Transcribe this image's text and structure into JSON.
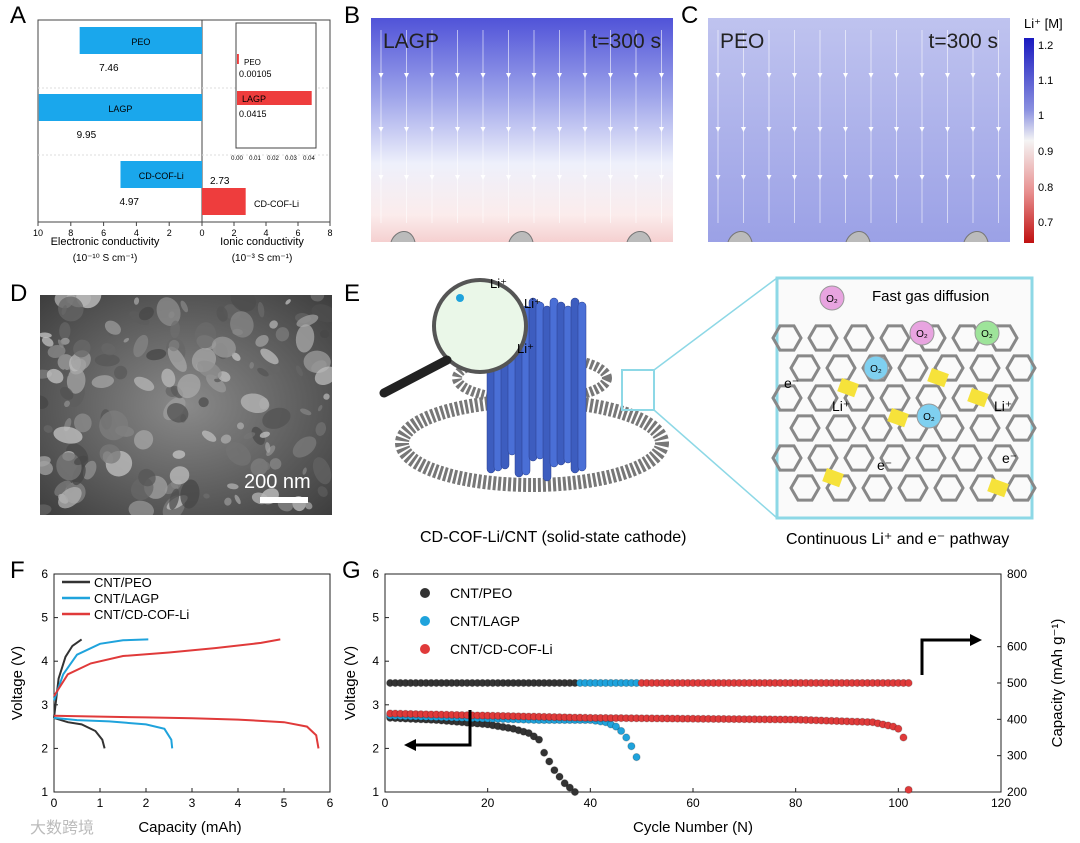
{
  "panels": {
    "A": {
      "label": "A",
      "left_axis_label": "Electronic conductivity",
      "left_axis_units": "(10⁻¹⁰ S cm⁻¹)",
      "right_axis_label": "Ionic conductivity",
      "right_axis_units": "(10⁻³ S cm⁻¹)",
      "left_ticks": [
        "10",
        "8",
        "6",
        "4",
        "2",
        "0"
      ],
      "right_ticks": [
        "2",
        "4",
        "6",
        "8"
      ],
      "inset_ticks": [
        "0.00",
        "0.01",
        "0.02",
        "0.03",
        "0.04"
      ]
    },
    "B": {
      "label": "B",
      "title": "LAGP",
      "time": "t=300 s"
    },
    "C": {
      "label": "C",
      "title": "PEO",
      "time": "t=300 s",
      "colorbar_title": "Li⁺ [M]",
      "colorbar_ticks": [
        "1.2",
        "1.1",
        "1",
        "0.9",
        "0.8",
        "0.7"
      ]
    },
    "D": {
      "label": "D",
      "scale": "200 nm"
    },
    "E": {
      "label": "E",
      "caption_left": "CD-COF-Li/CNT (solid-state cathode)",
      "caption_right": "Continuous Li⁺ and e⁻ pathway",
      "fast_gas": "Fast gas diffusion",
      "li_plus": "Li⁺",
      "e_minus": "e⁻",
      "o2": "O₂"
    },
    "F": {
      "label": "F",
      "xlabel": "Capacity (mAh)",
      "ylabel": "Voltage (V)",
      "xticks": [
        "0",
        "1",
        "2",
        "3",
        "4",
        "5",
        "6"
      ],
      "yticks": [
        "1",
        "2",
        "3",
        "4",
        "5",
        "6"
      ],
      "legend": [
        "CNT/PEO",
        "CNT/LAGP",
        "CNT/CD-COF-Li"
      ]
    },
    "G": {
      "label": "G",
      "xlabel": "Cycle Number (N)",
      "ylabel": "Voltage (V)",
      "y2label": "Capacity (mAh g⁻¹)",
      "xticks": [
        "0",
        "20",
        "40",
        "60",
        "80",
        "100",
        "120"
      ],
      "yticks": [
        "1",
        "2",
        "3",
        "4",
        "5",
        "6"
      ],
      "y2ticks": [
        "200",
        "300",
        "400",
        "500",
        "600",
        "800"
      ],
      "legend": [
        "CNT/PEO",
        "CNT/LAGP",
        "CNT/CD-COF-Li"
      ]
    }
  },
  "watermark": "大数跨境",
  "colors": {
    "peo": "#333333",
    "lagp": "#1fa3dc",
    "cof": "#e03a3a",
    "bar_blue": "#1aa7ec",
    "bar_red": "#ee3d3d"
  },
  "chart_data": [
    {
      "type": "bar",
      "title": "A",
      "orientation": "horizontal",
      "categories": [
        "PEO",
        "LAGP",
        "CD-COF-Li"
      ],
      "series": [
        {
          "name": "Electronic conductivity (10^-10 S cm^-1)",
          "values": [
            7.46,
            9.95,
            4.97
          ]
        },
        {
          "name": "Ionic conductivity (10^-3 S cm^-1)",
          "values": [
            0.00105,
            0.0415,
            2.73
          ]
        }
      ],
      "value_labels": [
        "7.46",
        "9.95",
        "4.97",
        "0.00105",
        "0.0415",
        "2.73"
      ],
      "xlim_left": [
        0,
        10
      ],
      "xlim_right": [
        0,
        8
      ],
      "inset_xlim": [
        0,
        0.04
      ]
    },
    {
      "type": "line",
      "title": "F",
      "xlabel": "Capacity (mAh)",
      "ylabel": "Voltage (V)",
      "xlim": [
        0,
        6
      ],
      "ylim": [
        1,
        6
      ],
      "series": [
        {
          "name": "CNT/PEO charge",
          "x": [
            0,
            0.1,
            0.25,
            0.4,
            0.6
          ],
          "y": [
            2.7,
            3.6,
            4.1,
            4.35,
            4.5
          ]
        },
        {
          "name": "CNT/PEO discharge",
          "x": [
            0,
            0.3,
            0.6,
            0.9,
            1.05,
            1.1
          ],
          "y": [
            2.7,
            2.6,
            2.55,
            2.4,
            2.2,
            2.0
          ]
        },
        {
          "name": "CNT/LAGP charge",
          "x": [
            0,
            0.2,
            0.5,
            1.0,
            1.5,
            2.05
          ],
          "y": [
            3.1,
            3.7,
            4.15,
            4.4,
            4.48,
            4.5
          ]
        },
        {
          "name": "CNT/LAGP discharge",
          "x": [
            0,
            0.5,
            1.2,
            2.0,
            2.4,
            2.55,
            2.57
          ],
          "y": [
            2.7,
            2.65,
            2.62,
            2.55,
            2.45,
            2.2,
            2.0
          ]
        },
        {
          "name": "CNT/CD-COF-Li charge",
          "x": [
            0,
            0.3,
            0.8,
            1.5,
            2.5,
            3.5,
            4.5,
            4.92
          ],
          "y": [
            3.2,
            3.7,
            3.95,
            4.12,
            4.2,
            4.3,
            4.42,
            4.5
          ]
        },
        {
          "name": "CNT/CD-COF-Li discharge",
          "x": [
            0,
            1,
            2,
            3,
            4,
            5,
            5.5,
            5.7,
            5.75
          ],
          "y": [
            2.75,
            2.73,
            2.71,
            2.69,
            2.66,
            2.6,
            2.5,
            2.3,
            2.0
          ]
        }
      ]
    },
    {
      "type": "scatter",
      "title": "G",
      "xlabel": "Cycle Number (N)",
      "ylabel": "Voltage (V)",
      "y2label": "Capacity (mAh g^-1)",
      "xlim": [
        0,
        120
      ],
      "ylim": [
        1,
        6
      ],
      "y2lim": [
        200,
        800
      ],
      "series": [
        {
          "name": "CNT/PEO",
          "capacity_cycles": [
            1,
            37
          ],
          "capacity_value": 500,
          "voltage": [
            [
              1,
              2.7
            ],
            [
              10,
              2.65
            ],
            [
              20,
              2.55
            ],
            [
              25,
              2.45
            ],
            [
              28,
              2.35
            ],
            [
              30,
              2.2
            ],
            [
              31,
              1.9
            ],
            [
              32,
              1.7
            ],
            [
              33,
              1.5
            ],
            [
              34,
              1.35
            ],
            [
              35,
              1.2
            ],
            [
              36,
              1.1
            ],
            [
              37,
              1.0
            ]
          ]
        },
        {
          "name": "CNT/LAGP",
          "capacity_cycles": [
            38,
            49
          ],
          "capacity_value": 500,
          "voltage": [
            [
              1,
              2.75
            ],
            [
              30,
              2.65
            ],
            [
              40,
              2.65
            ],
            [
              43,
              2.6
            ],
            [
              45,
              2.5
            ],
            [
              46,
              2.4
            ],
            [
              47,
              2.25
            ],
            [
              48,
              2.05
            ],
            [
              49,
              1.8
            ]
          ]
        },
        {
          "name": "CNT/CD-COF-Li",
          "capacity_cycles": [
            50,
            102
          ],
          "capacity_value": 500,
          "voltage": [
            [
              1,
              2.8
            ],
            [
              40,
              2.7
            ],
            [
              80,
              2.66
            ],
            [
              95,
              2.6
            ],
            [
              99,
              2.5
            ],
            [
              100,
              2.45
            ],
            [
              101,
              2.25
            ],
            [
              102,
              1.05
            ]
          ]
        }
      ]
    }
  ]
}
